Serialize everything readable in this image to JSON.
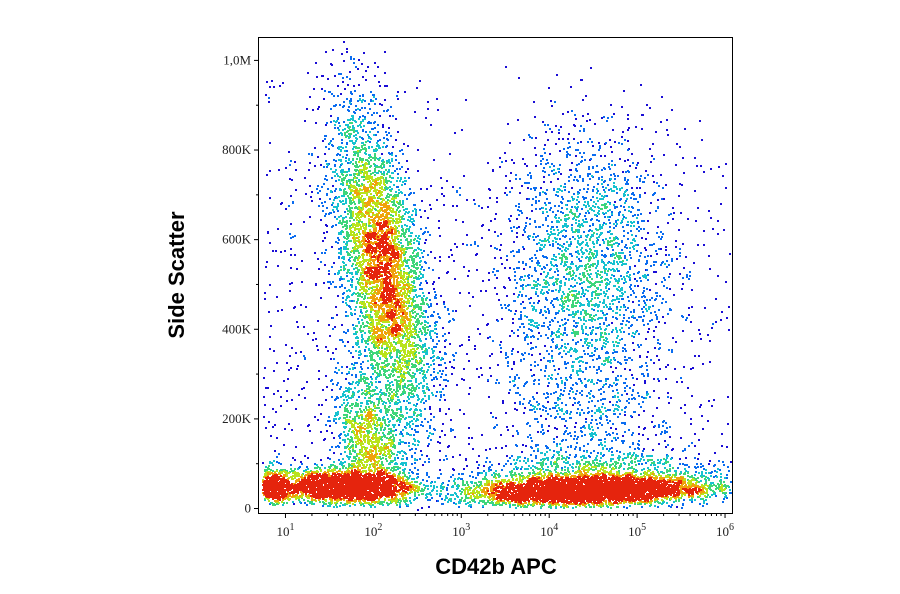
{
  "chart_data": {
    "type": "scatter",
    "subtype": "flow-cytometry density dot plot",
    "xlabel": "CD42b APC",
    "ylabel": "Side Scatter",
    "x_scale": "log",
    "xlim": [
      5,
      1200000
    ],
    "ylim": [
      -10000,
      1050000
    ],
    "x_ticks": [
      {
        "value": 10,
        "base": "10",
        "exp": "1"
      },
      {
        "value": 100,
        "base": "10",
        "exp": "2"
      },
      {
        "value": 1000,
        "base": "10",
        "exp": "3"
      },
      {
        "value": 10000,
        "base": "10",
        "exp": "4"
      },
      {
        "value": 100000,
        "base": "10",
        "exp": "5"
      },
      {
        "value": 1000000,
        "base": "10",
        "exp": "6"
      }
    ],
    "y_ticks": [
      {
        "value": 0,
        "label": "0"
      },
      {
        "value": 200000,
        "label": "200K"
      },
      {
        "value": 400000,
        "label": "400K"
      },
      {
        "value": 600000,
        "label": "600K"
      },
      {
        "value": 800000,
        "label": "800K"
      },
      {
        "value": 1000000,
        "label": "1,0M"
      }
    ],
    "color_scale": [
      "#1a0dd6",
      "#0a6cf0",
      "#17c2d0",
      "#3ed67a",
      "#b9e31c",
      "#f0a10c",
      "#e5240d"
    ],
    "populations": [
      {
        "x_center": 200,
        "y_center": 500000,
        "density": "high"
      },
      {
        "x_center": 130,
        "y_center": 40000,
        "density": "high"
      },
      {
        "x_center": 30000,
        "y_center": 30000,
        "density": "very high"
      },
      {
        "x_center": 15000,
        "y_center": 510000,
        "density": "medium"
      },
      {
        "x_center": 250,
        "y_center": 200000,
        "density": "low"
      }
    ],
    "grid": false,
    "legend": "none"
  }
}
